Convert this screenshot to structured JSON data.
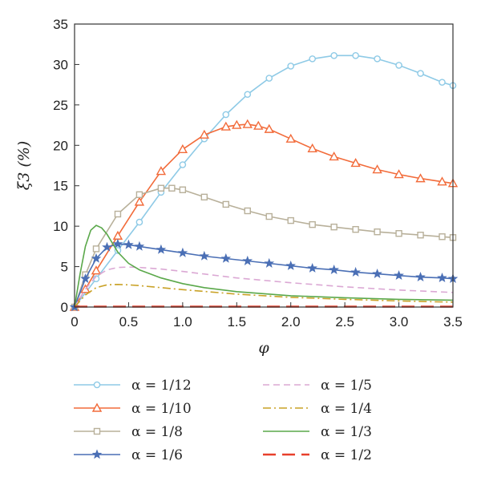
{
  "chart_data": {
    "type": "line",
    "xlabel": "φ",
    "ylabel": "ξ3 (%)",
    "xlim": [
      0,
      3.5
    ],
    "ylim": [
      0,
      35
    ],
    "xticks": [
      "0",
      "0.5",
      "1.0",
      "1.5",
      "2.0",
      "2.5",
      "3.0",
      "3.5"
    ],
    "yticks": [
      "0",
      "5",
      "10",
      "15",
      "20",
      "25",
      "30",
      "35"
    ],
    "grid": false,
    "legend_position": "below",
    "series": [
      {
        "name": "α = 1/12",
        "color": "#8ecae6",
        "dash": "solid",
        "marker": "circle",
        "x": [
          0,
          0.2,
          0.4,
          0.6,
          0.8,
          1.0,
          1.2,
          1.4,
          1.6,
          1.8,
          2.0,
          2.2,
          2.4,
          2.6,
          2.8,
          3.0,
          3.2,
          3.4,
          3.5
        ],
        "y": [
          0,
          3.5,
          7.0,
          10.5,
          14.2,
          17.6,
          20.8,
          23.8,
          26.3,
          28.3,
          29.8,
          30.7,
          31.1,
          31.1,
          30.7,
          29.9,
          28.9,
          27.8,
          27.4
        ]
      },
      {
        "name": "α = 1/10",
        "color": "#f26b3a",
        "dash": "solid",
        "marker": "triangle",
        "x": [
          0,
          0.1,
          0.2,
          0.4,
          0.6,
          0.8,
          1.0,
          1.2,
          1.4,
          1.5,
          1.6,
          1.7,
          1.8,
          2.0,
          2.2,
          2.4,
          2.6,
          2.8,
          3.0,
          3.2,
          3.4,
          3.5
        ],
        "y": [
          0,
          2.2,
          4.5,
          8.8,
          13.0,
          16.8,
          19.5,
          21.3,
          22.3,
          22.5,
          22.6,
          22.4,
          22.0,
          20.8,
          19.6,
          18.6,
          17.8,
          17.0,
          16.4,
          15.9,
          15.5,
          15.3
        ]
      },
      {
        "name": "α = 1/8",
        "color": "#b8b09a",
        "dash": "solid",
        "marker": "square",
        "x": [
          0,
          0.1,
          0.2,
          0.4,
          0.6,
          0.8,
          0.9,
          1.0,
          1.2,
          1.4,
          1.6,
          1.8,
          2.0,
          2.2,
          2.4,
          2.6,
          2.8,
          3.0,
          3.2,
          3.4,
          3.5
        ],
        "y": [
          0,
          4.0,
          7.2,
          11.5,
          13.9,
          14.7,
          14.7,
          14.5,
          13.6,
          12.7,
          11.9,
          11.2,
          10.7,
          10.2,
          9.9,
          9.6,
          9.3,
          9.1,
          8.9,
          8.7,
          8.6
        ]
      },
      {
        "name": "α = 1/6",
        "color": "#4a6fb5",
        "dash": "solid",
        "marker": "star",
        "x": [
          0,
          0.1,
          0.2,
          0.3,
          0.4,
          0.5,
          0.6,
          0.8,
          1.0,
          1.2,
          1.4,
          1.6,
          1.8,
          2.0,
          2.2,
          2.4,
          2.6,
          2.8,
          3.0,
          3.2,
          3.4,
          3.5
        ],
        "y": [
          0,
          3.5,
          6.0,
          7.4,
          7.8,
          7.7,
          7.5,
          7.1,
          6.7,
          6.3,
          6.0,
          5.7,
          5.4,
          5.1,
          4.8,
          4.6,
          4.3,
          4.1,
          3.9,
          3.7,
          3.6,
          3.5
        ]
      },
      {
        "name": "α = 1/5",
        "color": "#dba8d4",
        "dash": "dashed",
        "marker": "none",
        "x": [
          0,
          0.1,
          0.2,
          0.3,
          0.4,
          0.5,
          0.6,
          0.8,
          1.0,
          1.5,
          2.0,
          2.5,
          3.0,
          3.5
        ],
        "y": [
          0,
          2.2,
          3.8,
          4.6,
          4.9,
          4.95,
          4.9,
          4.7,
          4.4,
          3.6,
          3.0,
          2.5,
          2.1,
          1.8
        ]
      },
      {
        "name": "α = 1/4",
        "color": "#c9a227",
        "dash": "dashdot",
        "marker": "none",
        "x": [
          0,
          0.1,
          0.2,
          0.3,
          0.4,
          0.5,
          0.6,
          0.8,
          1.0,
          1.5,
          2.0,
          2.5,
          3.0,
          3.5
        ],
        "y": [
          0,
          1.5,
          2.4,
          2.75,
          2.8,
          2.75,
          2.65,
          2.4,
          2.15,
          1.6,
          1.2,
          0.95,
          0.75,
          0.6
        ]
      },
      {
        "name": "α = 1/3",
        "color": "#5aa84a",
        "dash": "solid",
        "marker": "none",
        "x": [
          0,
          0.05,
          0.1,
          0.15,
          0.2,
          0.25,
          0.3,
          0.35,
          0.4,
          0.5,
          0.6,
          0.8,
          1.0,
          1.2,
          1.5,
          2.0,
          2.5,
          3.0,
          3.5
        ],
        "y": [
          0,
          4.0,
          7.5,
          9.5,
          10.1,
          9.8,
          9.0,
          7.9,
          6.8,
          5.4,
          4.6,
          3.6,
          2.9,
          2.4,
          1.9,
          1.4,
          1.15,
          0.95,
          0.85
        ]
      },
      {
        "name": "α = 1/2",
        "color": "#e8402c",
        "dash": "longdash",
        "marker": "none",
        "x": [
          0,
          0.5,
          1.0,
          1.5,
          2.0,
          2.5,
          3.0,
          3.5
        ],
        "y": [
          0.05,
          0.05,
          0.05,
          0.05,
          0.05,
          0.05,
          0.05,
          0.05
        ]
      }
    ]
  }
}
